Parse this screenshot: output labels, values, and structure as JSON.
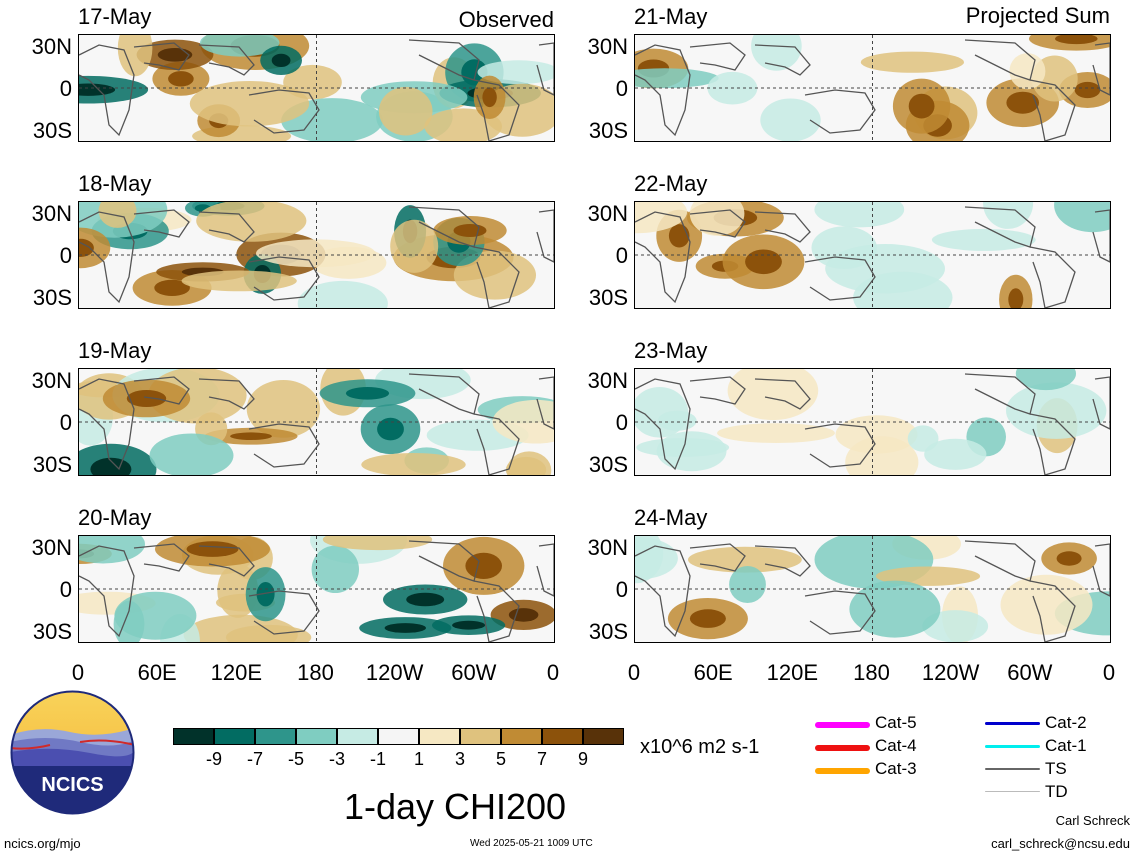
{
  "observed_title": "Observed",
  "projected_title": "Projected Sum",
  "observed_panels": [
    {
      "date": "17-May"
    },
    {
      "date": "18-May"
    },
    {
      "date": "19-May"
    },
    {
      "date": "20-May"
    }
  ],
  "projected_panels": [
    {
      "date": "21-May"
    },
    {
      "date": "22-May"
    },
    {
      "date": "23-May"
    },
    {
      "date": "24-May"
    }
  ],
  "lat_labels": [
    "30N",
    "0",
    "30S"
  ],
  "lon_labels": [
    "0",
    "60E",
    "120E",
    "180",
    "120W",
    "60W",
    "0"
  ],
  "colorbar": {
    "colors": [
      "#01322a",
      "#026c62",
      "#2e958b",
      "#7fcdc1",
      "#c6ebe4",
      "#f5f5f5",
      "#f6e8c3",
      "#dfc27e",
      "#c08b34",
      "#8c520b",
      "#583209"
    ],
    "labels": [
      "-9",
      "-7",
      "-5",
      "-3",
      "-1",
      "1",
      "3",
      "5",
      "7",
      "9"
    ],
    "units": "x10^6 m2 s-1"
  },
  "legend": [
    {
      "label": "Cat-5",
      "color": "#ff00ff"
    },
    {
      "label": "Cat-4",
      "color": "#ee1111"
    },
    {
      "label": "Cat-3",
      "color": "#ffa500"
    },
    {
      "label": "Cat-2",
      "color": "#0000cc"
    },
    {
      "label": "Cat-1",
      "color": "#00eeee"
    },
    {
      "label": "TS",
      "color": "#666666"
    },
    {
      "label": "TD",
      "color": "#bbbbbb"
    }
  ],
  "main_title": "1-day CHI200",
  "logo_text": "NCICS",
  "site": "ncics.org/mjo",
  "timestamp": "Wed 2025-05-21 1009 UTC",
  "author": "Carl Schreck",
  "email": "carl_schreck@ncsu.edu"
}
